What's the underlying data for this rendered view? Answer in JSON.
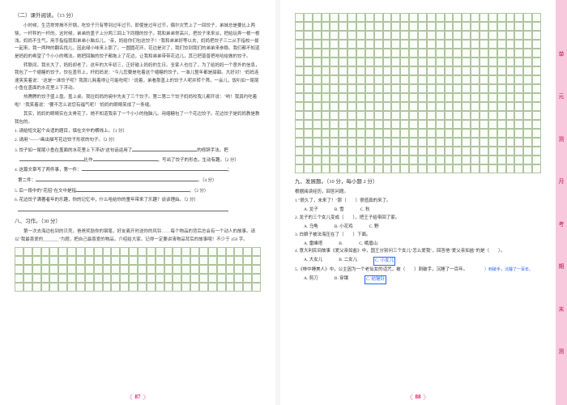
{
  "left_page": {
    "section_header": "（二）课外阅读。（13 分）",
    "paragraphs": [
      "小时候，生活常常揭不开锅，吃饺子只有等到过年过节。即使是过年过节，偶尔灾荒上了一回饺子，弟妹总是要比上两筷，一杆秤的一杆的。这时候，弟弟的盖子上分两三回上下同穗的饺子。我和弟弟常高兴，把饺子来来派，把给玩弄一根一根浅。妈妈不生气，用手指指我和弟弟小脑瓜儿，\"亲，妈给你们包这饺子！\"我和弟弟好等以去，妈妈把饺子三二从手指校一拔一起来。我一两种的翻名找儿，因此绿小味来上那了。一圆圆花环。花边是对了，我们饺到我们的弟弟来参稳。我们都不知道是妈妈的希望了个小小的嘴法。她把回脑的饺子都拖上了花边，让我和弟弟带带花边儿，其已把普普把呛哈给做的饺子。",
      "转联间，我长大了，妈妈却老了。这年的大年初三，正好碰上妈妈的生日。全家人也住了，为了给妈妈一个意外的信息，我包了一个缩糖的饺子。饺在盖帘上，杆妈妈说：\"今儿您要是吃着这个缩糖的饺子，一准儿整年都是甜甜。大好对！\"妈妈连速笑笑着说：\"这是一准饺子呢？我那儿耗着得让可能吃呢！\"说着，弟看那盖上的饺子人呢并转个筛，一会儿，饭叭如一尾尾小鱼在盖面的水花里上下浮动。",
      "热腾腾的饺子盛上盘。盖上桌。我往妈妈的碗中先夹了三个饺子。第二第二个饺子妈妈咬我儿都开说：\"哟！我真约吃着啦！\"我笑着说：\"要不怎么说您有福气呢！\"妈妈的眼睛笑成了一条缝。",
      "其实，妈妈的眼睛实在太骨花了。她不知道我亲了一个小小的拖脑儿。用缩糖包了一个花边饺子。花边饺子是妈妈教是教我包的。"
    ],
    "questions": [
      {
        "num": "1",
        "text": "请给短文起个合适的题目，填在文中的横线上。（1 分）"
      },
      {
        "num": "2",
        "text": "请用\"——\"画出描写花边饺子形状的句子。（2 分）"
      },
      {
        "num": "3",
        "text": "饺子如一尾尾小鱼在盖面的水花里上下浮动\"这句话运用了",
        "tail": "的修辞手法。把",
        "tail2": "比作",
        "tail3": "，写出了饺子的形态，生动有趣。（2 分）"
      },
      {
        "num": "4",
        "text": "这篇文章写了两件事，第一件：",
        "tail": "；"
      },
      {
        "num": "",
        "text": "第二件：",
        "tail": "。（4 分）"
      },
      {
        "num": "5",
        "text": "后一段中的\"花招\"在文中是指",
        "tail": "。（2 分）"
      },
      {
        "num": "6",
        "text": "花边饺子满著者年的乐趣，你的记忆中，什么哈给你的童年带来了乐趣？谈谈理由。（2 分）"
      }
    ],
    "writing_header": "八、习作。（30 分）",
    "writing_prompt": "第一次去海边检到的贝壳，爸爸奖励你的钢笔，好友离开时送你的风铃……每个物品的背后总会有一个动人的故事。请以\"我最喜爱的_______\"为题，把自己最喜爱的物品，介绍给大家。记得一定要讲清物品背后的故事哦！不少于 450 字。",
    "grid_rows": 5,
    "grid_cols": 28,
    "page_number": "87"
  },
  "right_page": {
    "grid_rows": 18,
    "grid_cols": 28,
    "section_header": "九、发展题。（10 分，每小题 2 分）",
    "intro": "根据阅读经历，回答问题。",
    "q1": {
      "stem": "1.\"很久了，未来了！\"那（　　）很值真的来了。",
      "opts": [
        "A. 龙子",
        "B. 雪",
        "C. 秋"
      ]
    },
    "q2": {
      "stem": "2. 龙子的三个女儿变成（　　），把王子给带回了家。",
      "opts": [
        "A. 乌龟",
        "B. 小花鸡",
        "C. 野"
      ]
    },
    "q3": {
      "stem": "3. 白娘子被法海压在了（　　）下面。",
      "opts": [
        "A. 雷峰塔",
        "B. ",
        "C. 峨眉山"
      ]
    },
    "q4": {
      "stem": "4. 意大利民间故事《爱父亲如盐》中，国王分别问三个女儿\"怎么爱我\"，回答他\"爱父亲如盐\"的是（　　）。",
      "opts": [
        "A. 大女儿",
        "B. 二女儿",
        "C. 小女儿"
      ]
    },
    "q5": {
      "stem": "5.《林中睡美人》中，公主因为一个老仙女的诅咒，被（　　）刺破手，沉睡了一百年。",
      "opts": [
        "A. 剪刀",
        "B. 穿镶",
        "C. 纺锤针"
      ]
    },
    "annotations": {
      "a4": "C. 小女儿",
      "a5_mid": "刺破手，沉睡了一百年。",
      "a5_end": "C. 纺锤针"
    },
    "page_number": "88"
  },
  "side_tabs": [
    "单",
    "元",
    "测",
    "月",
    "考",
    "期",
    "末",
    "测"
  ],
  "colors": {
    "pink": "#f8c8dc",
    "pink_dark": "#e91e63",
    "grid_border": "#b0c4a0",
    "annotation": "#2962ff"
  }
}
